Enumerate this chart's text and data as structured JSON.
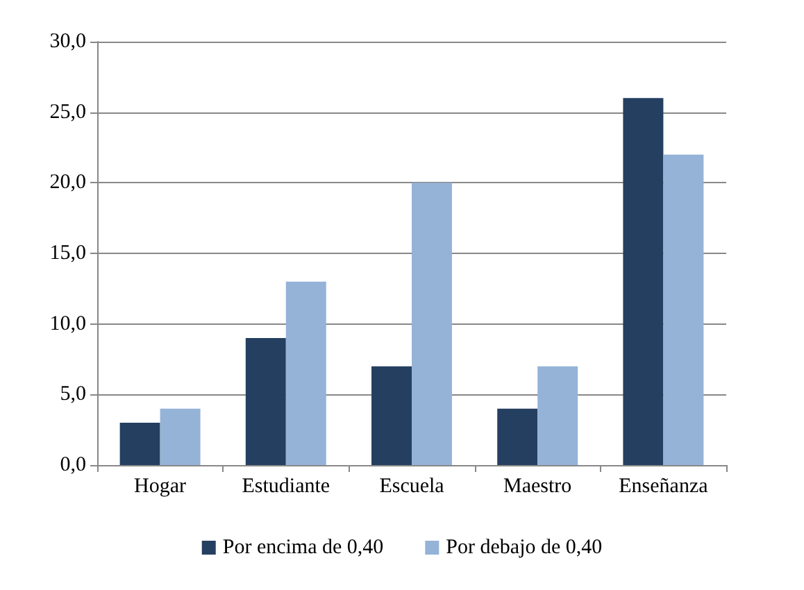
{
  "chart_data": {
    "type": "bar",
    "categories": [
      "Hogar",
      "Estudiante",
      "Escuela",
      "Maestro",
      "Enseñanza"
    ],
    "series": [
      {
        "name": "Por encima de 0,40",
        "color": "#243f60",
        "values": [
          3,
          9,
          7,
          4,
          26
        ]
      },
      {
        "name": "Por debajo de 0,40",
        "color": "#95b3d7",
        "values": [
          4,
          13,
          20,
          7,
          22
        ]
      }
    ],
    "ylim": [
      0,
      30
    ],
    "yticks": [
      {
        "value": 0,
        "label": "0,0"
      },
      {
        "value": 5,
        "label": "5,0"
      },
      {
        "value": 10,
        "label": "10,0"
      },
      {
        "value": 15,
        "label": "15,0"
      },
      {
        "value": 20,
        "label": "20,0"
      },
      {
        "value": 25,
        "label": "25,0"
      },
      {
        "value": 30,
        "label": "30,0"
      }
    ],
    "grid": "y",
    "legend": "bottom"
  }
}
